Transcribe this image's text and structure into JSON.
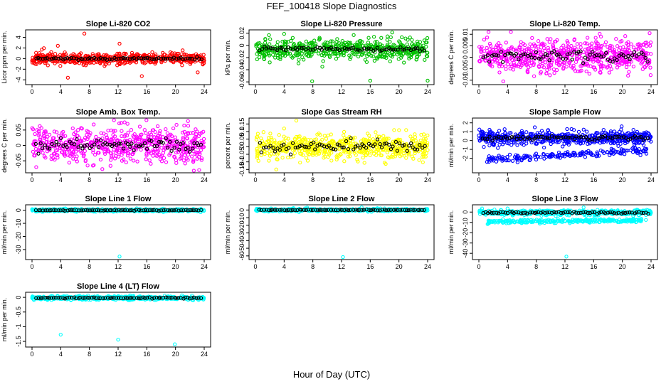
{
  "figure": {
    "title": "FEF_100418  Slope Diagnostics",
    "xlabel": "Hour of Day (UTC)"
  },
  "chart_data": [
    {
      "type": "scatter",
      "title": "Slope Li-820 CO2",
      "ylabel": "Licor ppm per min.",
      "color": "#ff0000",
      "xlim": [
        0,
        24
      ],
      "ylim": [
        -4.5,
        5
      ],
      "xticks": [
        0,
        4,
        8,
        12,
        16,
        20,
        24
      ],
      "yticks": [
        -4,
        -2,
        0,
        2,
        4
      ],
      "center": 0,
      "spread": 0.55,
      "band": 0.12,
      "n": 520,
      "ref_n": 75,
      "outliers": [
        [
          7.3,
          4.7
        ],
        [
          5.0,
          -3.6
        ],
        [
          12.2,
          2.8
        ],
        [
          15.3,
          -3.3
        ],
        [
          3.6,
          2.4
        ],
        [
          23.1,
          -2.6
        ]
      ],
      "seed": 11
    },
    {
      "type": "scatter",
      "title": "Slope Li-820 Pressure",
      "ylabel": "kPa per min.",
      "color": "#00c000",
      "xlim": [
        0,
        24
      ],
      "ylim": [
        -0.061,
        0.022
      ],
      "xticks": [
        0,
        4,
        8,
        12,
        16,
        20,
        24
      ],
      "yticks": [
        -0.06,
        -0.04,
        -0.02,
        0,
        0.02
      ],
      "center": -0.006,
      "spread": 0.008,
      "band": 0.002,
      "n": 560,
      "ref_n": 75,
      "outliers": [
        [
          4.0,
          0.019
        ],
        [
          7.9,
          -0.059
        ],
        [
          16.0,
          -0.058
        ],
        [
          24.0,
          -0.058
        ],
        [
          13.7,
          0.017
        ]
      ],
      "seed": 23
    },
    {
      "type": "scatter",
      "title": "Slope Li-820 Temp.",
      "ylabel": "degrees C per min.",
      "color": "#ff00ff",
      "xlim": [
        0,
        24
      ],
      "ylim": [
        -0.011,
        0.011
      ],
      "xticks": [
        0,
        4,
        8,
        12,
        16,
        20,
        24
      ],
      "yticks": [
        -0.01,
        -0.005,
        0,
        0.005,
        0.01
      ],
      "center": 0.0005,
      "spread": 0.0035,
      "band": 0.0012,
      "n": 620,
      "ref_n": 75,
      "outliers": [
        [
          23.8,
          0.0105
        ],
        [
          3.4,
          -0.0105
        ]
      ],
      "seed": 37
    },
    {
      "type": "scatter",
      "title": "Slope Amb. Box Temp.",
      "ylabel": "degrees C per min.",
      "color": "#ff00ff",
      "xlim": [
        0,
        24
      ],
      "ylim": [
        -0.082,
        0.082
      ],
      "xticks": [
        0,
        4,
        8,
        12,
        16,
        20,
        24
      ],
      "yticks": [
        -0.05,
        0,
        0.05
      ],
      "center": 0,
      "spread": 0.028,
      "band": 0.01,
      "n": 600,
      "ref_n": 75,
      "outliers": [
        [
          12.9,
          0.075
        ],
        [
          23.3,
          -0.08
        ],
        [
          9.8,
          -0.077
        ]
      ],
      "seed": 41
    },
    {
      "type": "scatter",
      "title": "Slope Gas Stream RH",
      "ylabel": "percent per min.",
      "color": "#ffff00",
      "xlim": [
        0,
        24
      ],
      "ylim": [
        -0.158,
        0.175
      ],
      "xticks": [
        0,
        4,
        8,
        12,
        16,
        20,
        24
      ],
      "yticks": [
        -0.15,
        -0.1,
        -0.05,
        0,
        0.05,
        0.1,
        0.15
      ],
      "center": 0,
      "spread": 0.04,
      "band": 0.02,
      "n": 620,
      "ref_n": 75,
      "outliers": [
        [
          5.7,
          0.172
        ],
        [
          2.9,
          -0.15
        ],
        [
          4.0,
          0.12
        ],
        [
          21.0,
          0.11
        ]
      ],
      "seed": 53
    },
    {
      "type": "scatter",
      "title": "Slope Sample Flow",
      "ylabel": "ml/min per min.",
      "color": "#0000ff",
      "xlim": [
        0,
        24
      ],
      "ylim": [
        -3.4,
        2.3
      ],
      "xticks": [
        0,
        4,
        8,
        12,
        16,
        20,
        24
      ],
      "yticks": [
        -2,
        -1,
        0,
        1,
        2
      ],
      "center": 0.3,
      "spread": 0.35,
      "band": 0.12,
      "n": 520,
      "ref_n": 75,
      "curve": {
        "n": 180,
        "from": -2.2,
        "to": -1.1,
        "spread": 0.2
      },
      "outliers": [
        [
          7.8,
          1.5
        ],
        [
          12.3,
          1.3
        ],
        [
          19.9,
          1.6
        ]
      ],
      "seed": 67
    },
    {
      "type": "scatter",
      "title": "Slope Line 1 Flow",
      "ylabel": "ml/min per min.",
      "color": "#00ffff",
      "xlim": [
        0,
        24
      ],
      "ylim": [
        -36,
        2.5
      ],
      "xticks": [
        0,
        4,
        8,
        12,
        16,
        20,
        24
      ],
      "yticks": [
        -30,
        -20,
        -10,
        0
      ],
      "center": 0,
      "spread": 0.45,
      "band": 0.15,
      "n": 520,
      "ref_n": 75,
      "outliers": [
        [
          14.6,
          1.4
        ],
        [
          12.2,
          -35.3
        ],
        [
          0.5,
          0.9
        ],
        [
          23.5,
          -1.5
        ]
      ],
      "seed": 71
    },
    {
      "type": "scatter",
      "title": "Slope Line 2 Flow",
      "ylabel": "ml/min per min.",
      "color": "#00ffff",
      "xlim": [
        0,
        24
      ],
      "ylim": [
        -62,
        4
      ],
      "xticks": [
        0,
        4,
        8,
        12,
        16,
        20,
        24
      ],
      "yticks": [
        -60,
        -50,
        -40,
        -30,
        -20,
        -10,
        0
      ],
      "center": 0,
      "spread": 0.8,
      "band": 0.25,
      "n": 520,
      "ref_n": 75,
      "outliers": [
        [
          12.2,
          -61.5
        ],
        [
          7.2,
          3.2
        ],
        [
          14.8,
          3.5
        ],
        [
          5.3,
          2.5
        ]
      ],
      "seed": 83
    },
    {
      "type": "scatter",
      "title": "Slope Line 3 Flow",
      "ylabel": "ml/min per min.",
      "color": "#00ffff",
      "xlim": [
        0,
        24
      ],
      "ylim": [
        -44,
        5
      ],
      "xticks": [
        0,
        4,
        8,
        12,
        16,
        20,
        24
      ],
      "yticks": [
        -40,
        -30,
        -20,
        -10,
        0
      ],
      "center": -0.5,
      "spread": 1.3,
      "band": 0.4,
      "n": 460,
      "ref_n": 75,
      "curve": {
        "n": 260,
        "from": -9.2,
        "to": -8.0,
        "spread": 0.9
      },
      "outliers": [
        [
          12.2,
          -43.2
        ],
        [
          14.6,
          4.5
        ],
        [
          4.0,
          3.5
        ]
      ],
      "seed": 97
    },
    {
      "type": "scatter",
      "title": "Slope Line 4 (LT) Flow",
      "ylabel": "ml/min per min.",
      "color": "#00ffff",
      "xlim": [
        0,
        24
      ],
      "ylim": [
        -1.62,
        0.1
      ],
      "xticks": [
        0,
        4,
        8,
        12,
        16,
        20,
        24
      ],
      "yticks": [
        -1.5,
        -1,
        -0.5,
        0
      ],
      "center": -0.02,
      "spread": 0.03,
      "band": 0.01,
      "n": 520,
      "ref_n": 75,
      "outliers": [
        [
          4.0,
          -1.27
        ],
        [
          12.0,
          -1.44
        ],
        [
          19.9,
          -1.6
        ],
        [
          18.5,
          0.06
        ]
      ],
      "seed": 101
    }
  ]
}
